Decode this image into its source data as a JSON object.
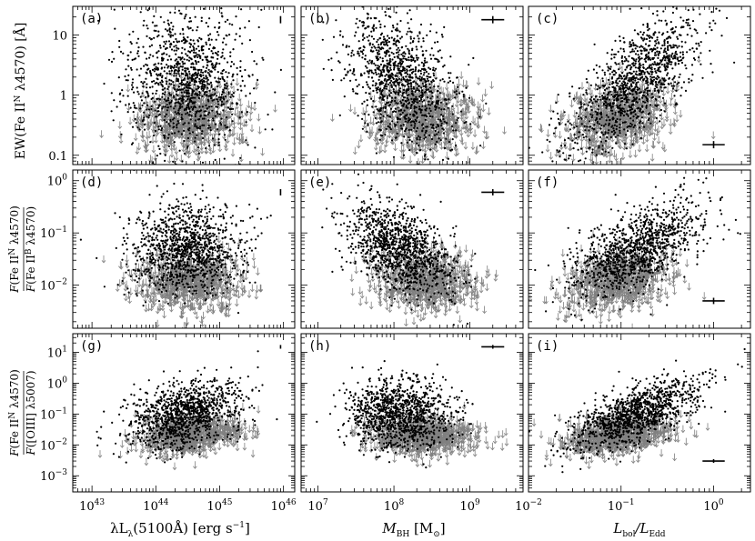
{
  "chart_data": {
    "type": "scatter",
    "layout": "3x3 grid of scatter panels",
    "colors": {
      "detection": "#000000",
      "upper_limit": "#808080"
    },
    "legend": "none",
    "grid": false,
    "xaxes": [
      {
        "label": "λL_λ(5100Å) [erg s⁻¹]",
        "scale": "log",
        "xlim": [
          5e+42,
          1.5e+46
        ],
        "ticks": [
          {
            "v": 1e+43,
            "base": "10",
            "exp": "43"
          },
          {
            "v": 1e+44,
            "base": "10",
            "exp": "44"
          },
          {
            "v": 1e+45,
            "base": "10",
            "exp": "45"
          },
          {
            "v": 1e+46,
            "base": "10",
            "exp": "46"
          }
        ]
      },
      {
        "label": "M_BH [M⊙]",
        "scale": "log",
        "xlim": [
          6000000.0,
          5000000000.0
        ],
        "ticks": [
          {
            "v": 10000000.0,
            "base": "10",
            "exp": "7"
          },
          {
            "v": 100000000.0,
            "base": "10",
            "exp": "8"
          },
          {
            "v": 1000000000.0,
            "base": "10",
            "exp": "9"
          }
        ]
      },
      {
        "label": "L_bol/L_Edd",
        "scale": "log",
        "xlim": [
          0.01,
          2.5
        ],
        "ticks": [
          {
            "v": 0.01,
            "base": "10",
            "exp": "−2"
          },
          {
            "v": 0.1,
            "base": "10",
            "exp": "−1"
          },
          {
            "v": 1,
            "base": "10",
            "exp": "0"
          }
        ]
      }
    ],
    "yaxes": [
      {
        "label": "EW(Fe II^N λ4570) [Å]",
        "scale": "log",
        "ylim": [
          0.07,
          30
        ],
        "ticks": [
          {
            "v": 0.1,
            "text": "0.1"
          },
          {
            "v": 1,
            "text": "1"
          },
          {
            "v": 10,
            "text": "10"
          }
        ]
      },
      {
        "label": "F(Fe II^N λ4570) / F(Fe II^B λ4570)",
        "scale": "log",
        "ylim": [
          0.0015,
          1.6
        ],
        "ticks": [
          {
            "v": 0.01,
            "base": "10",
            "exp": "−2"
          },
          {
            "v": 0.1,
            "base": "10",
            "exp": "−1"
          },
          {
            "v": 1,
            "base": "10",
            "exp": "0"
          }
        ]
      },
      {
        "label": "F(Fe II^N λ4570) / F([O III] λ5007)",
        "scale": "log",
        "ylim": [
          0.0003,
          40
        ],
        "ticks": [
          {
            "v": 0.001,
            "base": "10",
            "exp": "−3"
          },
          {
            "v": 0.01,
            "base": "10",
            "exp": "−2"
          },
          {
            "v": 0.1,
            "base": "10",
            "exp": "−1"
          },
          {
            "v": 1,
            "base": "10",
            "exp": "0"
          },
          {
            "v": 10,
            "base": "10",
            "exp": "1"
          }
        ]
      }
    ],
    "ylabel_text": {
      "ew": "EW(Fe II",
      "ew_sup": "N",
      "ew_rest": " λ4570) [Å]",
      "f": "F",
      "fe2": "(Fe II",
      "fe2n": "N",
      "fe2b": "B",
      "lam4570": "λ4570)",
      "lam4570b": "λ4570)",
      "oiii": "([OIII] λ5007)"
    },
    "xlabel_text": {
      "lum": "λL",
      "lum_sub": "λ",
      "lum_rest": "(5100Å) [erg s",
      "lum_sup": "−1",
      "lum_close": "]",
      "mbh": "M",
      "mbh_sub": "BH",
      "mbh_rest": " [M",
      "mbh_sun": "⊙",
      "mbh_close": "]",
      "lbol": "L",
      "lbol_sub": "bol",
      "slash": "/L",
      "ledd_sub": "Edd"
    },
    "panels": [
      {
        "label": "(a)",
        "row": 0,
        "col": 0,
        "det": {
          "cx": 3e+44,
          "cy": 1.8,
          "sx": 0.45,
          "sy": 0.55,
          "rho": 0.0,
          "n": 1150
        },
        "lim": {
          "cx": 3.5e+44,
          "cy": 0.4,
          "sx": 0.4,
          "sy": 0.28,
          "rho": 0.0,
          "n": 800
        },
        "errbar": {
          "x": 9e+45,
          "y": 18,
          "dx": 0.0,
          "dy": 0.06
        }
      },
      {
        "label": "(b)",
        "row": 0,
        "col": 1,
        "det": {
          "cx": 120000000.0,
          "cy": 1.8,
          "sx": 0.35,
          "sy": 0.55,
          "rho": -0.4,
          "n": 1150
        },
        "lim": {
          "cx": 250000000.0,
          "cy": 0.4,
          "sx": 0.35,
          "sy": 0.28,
          "rho": 0.0,
          "n": 800
        },
        "errbar": {
          "x": 2000000000.0,
          "y": 18,
          "dx": 0.15,
          "dy": 0.06
        }
      },
      {
        "label": "(c)",
        "row": 0,
        "col": 2,
        "det": {
          "cx": 0.15,
          "cy": 1.8,
          "sx": 0.35,
          "sy": 0.55,
          "rho": 0.7,
          "n": 1150
        },
        "lim": {
          "cx": 0.09,
          "cy": 0.4,
          "sx": 0.28,
          "sy": 0.28,
          "rho": 0.3,
          "n": 800
        },
        "errbar": {
          "x": 1.0,
          "y": 0.15,
          "dx": 0.12,
          "dy": 0.06
        }
      },
      {
        "label": "(d)",
        "row": 1,
        "col": 0,
        "det": {
          "cx": 3e+44,
          "cy": 0.05,
          "sx": 0.45,
          "sy": 0.45,
          "rho": 0.0,
          "n": 1150
        },
        "lim": {
          "cx": 3.5e+44,
          "cy": 0.012,
          "sx": 0.4,
          "sy": 0.28,
          "rho": 0.0,
          "n": 800
        },
        "errbar": {
          "x": 9e+45,
          "y": 0.6,
          "dx": 0.0,
          "dy": 0.06
        }
      },
      {
        "label": "(e)",
        "row": 1,
        "col": 1,
        "det": {
          "cx": 120000000.0,
          "cy": 0.05,
          "sx": 0.35,
          "sy": 0.45,
          "rho": -0.45,
          "n": 1150
        },
        "lim": {
          "cx": 250000000.0,
          "cy": 0.012,
          "sx": 0.35,
          "sy": 0.28,
          "rho": 0.0,
          "n": 800
        },
        "errbar": {
          "x": 2000000000.0,
          "y": 0.6,
          "dx": 0.15,
          "dy": 0.06
        }
      },
      {
        "label": "(f)",
        "row": 1,
        "col": 2,
        "det": {
          "cx": 0.15,
          "cy": 0.05,
          "sx": 0.35,
          "sy": 0.45,
          "rho": 0.6,
          "n": 1150
        },
        "lim": {
          "cx": 0.09,
          "cy": 0.012,
          "sx": 0.28,
          "sy": 0.28,
          "rho": 0.3,
          "n": 800
        },
        "errbar": {
          "x": 1.0,
          "y": 0.005,
          "dx": 0.12,
          "dy": 0.06
        }
      },
      {
        "label": "(g)",
        "row": 2,
        "col": 0,
        "det": {
          "cx": 3e+44,
          "cy": 0.1,
          "sx": 0.45,
          "sy": 0.55,
          "rho": 0.4,
          "n": 1150
        },
        "lim": {
          "cx": 3.5e+44,
          "cy": 0.02,
          "sx": 0.4,
          "sy": 0.3,
          "rho": 0.2,
          "n": 800
        },
        "errbar": {
          "x": 9e+45,
          "y": 15,
          "dx": 0.0,
          "dy": 0.06
        }
      },
      {
        "label": "(h)",
        "row": 2,
        "col": 1,
        "det": {
          "cx": 120000000.0,
          "cy": 0.1,
          "sx": 0.35,
          "sy": 0.55,
          "rho": -0.1,
          "n": 1150
        },
        "lim": {
          "cx": 250000000.0,
          "cy": 0.02,
          "sx": 0.35,
          "sy": 0.3,
          "rho": 0.0,
          "n": 800
        },
        "errbar": {
          "x": 2000000000.0,
          "y": 15,
          "dx": 0.15,
          "dy": 0.06
        }
      },
      {
        "label": "(i)",
        "row": 2,
        "col": 2,
        "det": {
          "cx": 0.15,
          "cy": 0.1,
          "sx": 0.35,
          "sy": 0.55,
          "rho": 0.65,
          "n": 1150
        },
        "lim": {
          "cx": 0.09,
          "cy": 0.02,
          "sx": 0.28,
          "sy": 0.3,
          "rho": 0.3,
          "n": 800
        },
        "errbar": {
          "x": 1.0,
          "y": 0.003,
          "dx": 0.12,
          "dy": 0.06
        }
      }
    ]
  }
}
